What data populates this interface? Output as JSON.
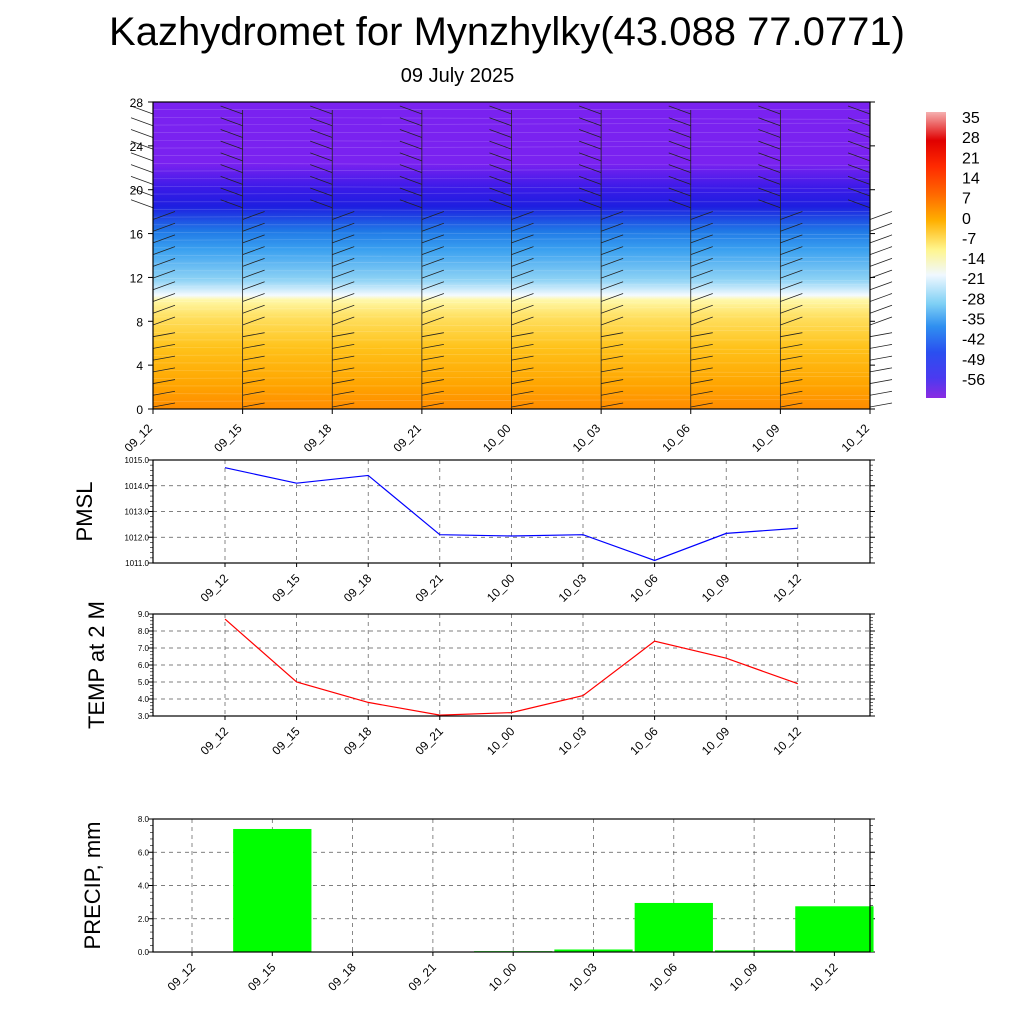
{
  "header": {
    "title": "Kazhydromet for Mynzhylky(43.088 77.0771)",
    "subtitle": "09 July 2025"
  },
  "chart_data": [
    {
      "type": "heatmap",
      "name": "cross-section",
      "x_ticks": [
        "09_12",
        "09_15",
        "09_18",
        "09_21",
        "10_00",
        "10_03",
        "10_06",
        "10_09",
        "10_12"
      ],
      "y_ticks": [
        "0",
        "4",
        "8",
        "12",
        "16",
        "20",
        "24",
        "28"
      ],
      "ylim": [
        0,
        28
      ],
      "colorbar_labels": [
        "35",
        "28",
        "21",
        "14",
        "7",
        "0",
        "-7",
        "-14",
        "-21",
        "-28",
        "-35",
        "-42",
        "-49",
        "-56"
      ],
      "colors": {
        "bottom": "#ff8c00",
        "warm": "#ffc21a",
        "pale": "#fff8a8",
        "white": "#f4faff",
        "lightblue": "#8fd3f5",
        "blue": "#1f78e6",
        "darkblue": "#1e1ee0",
        "violet": "#7a22f0"
      }
    },
    {
      "type": "line",
      "name": "pmsl",
      "ylabel": "PMSL",
      "x": [
        "09_12",
        "09_15",
        "09_18",
        "09_21",
        "10_00",
        "10_03",
        "10_06",
        "10_09",
        "10_12"
      ],
      "values": [
        1014.7,
        1014.1,
        1014.4,
        1012.1,
        1012.05,
        1012.1,
        1011.1,
        1012.15,
        1012.35
      ],
      "ylim": [
        1011.0,
        1015.0
      ],
      "y_ticks": [
        "1011.0",
        "1012.0",
        "1013.0",
        "1014.0",
        "1015.0"
      ],
      "color": "#0000ff",
      "grid": true
    },
    {
      "type": "line",
      "name": "temp2m",
      "ylabel": "TEMP at 2 M",
      "x": [
        "09_12",
        "09_15",
        "09_18",
        "09_21",
        "10_00",
        "10_03",
        "10_06",
        "10_09",
        "10_12"
      ],
      "values": [
        8.7,
        5.0,
        3.8,
        3.05,
        3.2,
        4.2,
        7.4,
        6.4,
        4.9
      ],
      "ylim": [
        3.0,
        9.0
      ],
      "y_ticks": [
        "3.0",
        "4.0",
        "5.0",
        "6.0",
        "7.0",
        "8.0",
        "9.0"
      ],
      "color": "#ff0000",
      "grid": true
    },
    {
      "type": "bar",
      "name": "precip",
      "ylabel": "PRECIP, mm",
      "categories": [
        "09_12",
        "09_15",
        "09_18",
        "09_21",
        "10_00",
        "10_03",
        "10_06",
        "10_09",
        "10_12"
      ],
      "values": [
        0,
        7.4,
        0,
        0,
        0.05,
        0.15,
        2.95,
        0.1,
        2.75
      ],
      "ylim": [
        0,
        8.0
      ],
      "y_ticks": [
        "0.0",
        "2.0",
        "4.0",
        "6.0",
        "8.0"
      ],
      "color": "#00ff00",
      "grid": true
    }
  ]
}
